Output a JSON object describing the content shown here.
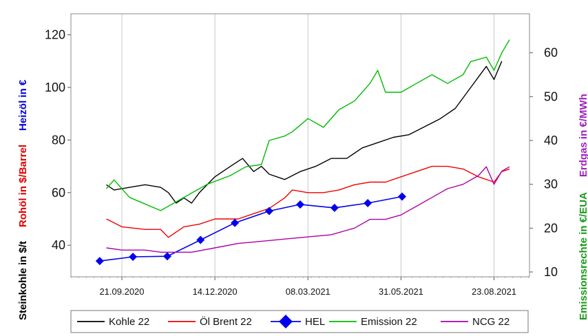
{
  "chart_data": {
    "type": "line",
    "left_axis_titles": [
      {
        "text": "Steinkohle in $/t",
        "color": "#000000"
      },
      {
        "text": "Rohöl in $/Barrel",
        "color": "#e00000"
      },
      {
        "text": "Heizöl in €",
        "color": "#0000dd"
      }
    ],
    "right_axis_titles": [
      {
        "text": "Emissionsrechte in €/EUA",
        "color": "#1a9a1a"
      },
      {
        "text": "Erdgas in €/MWh",
        "color": "#a020c0"
      }
    ],
    "left_axis": {
      "ylim": [
        28,
        128
      ],
      "ticks": [
        40,
        60,
        80,
        100,
        120
      ]
    },
    "right_axis": {
      "ylim": [
        8.9,
        68.9
      ],
      "ticks": [
        10,
        20,
        30,
        40,
        50,
        60
      ]
    },
    "x_axis": {
      "range": [
        "2020-08-06",
        "2021-09-24"
      ],
      "ticks": [
        {
          "date": "2020-09-21",
          "label": "21.09.2020"
        },
        {
          "date": "2020-12-14",
          "label": "14.12.2020"
        },
        {
          "date": "2021-03-08",
          "label": "08.03.2021"
        },
        {
          "date": "2021-05-31",
          "label": "31.05.2021"
        },
        {
          "date": "2021-08-23",
          "label": "23.08.2021"
        }
      ],
      "grid": true
    },
    "legend_position": "bottom",
    "series": [
      {
        "name": "Kohle 22",
        "color": "#000000",
        "axis": "left",
        "style": "line",
        "points": [
          [
            "2020-09-07",
            63
          ],
          [
            "2020-09-14",
            61
          ],
          [
            "2020-09-28",
            62
          ],
          [
            "2020-10-12",
            63
          ],
          [
            "2020-10-26",
            62
          ],
          [
            "2020-11-02",
            60
          ],
          [
            "2020-11-09",
            56
          ],
          [
            "2020-11-16",
            58
          ],
          [
            "2020-11-23",
            56
          ],
          [
            "2020-11-30",
            60
          ],
          [
            "2020-12-14",
            66
          ],
          [
            "2020-12-28",
            70
          ],
          [
            "2021-01-08",
            73
          ],
          [
            "2021-01-18",
            68
          ],
          [
            "2021-01-25",
            70
          ],
          [
            "2021-02-01",
            67
          ],
          [
            "2021-02-15",
            65
          ],
          [
            "2021-03-01",
            68
          ],
          [
            "2021-03-15",
            70
          ],
          [
            "2021-03-29",
            73
          ],
          [
            "2021-04-12",
            73
          ],
          [
            "2021-04-26",
            77
          ],
          [
            "2021-05-10",
            79
          ],
          [
            "2021-05-24",
            81
          ],
          [
            "2021-06-07",
            82
          ],
          [
            "2021-06-21",
            85
          ],
          [
            "2021-07-05",
            88
          ],
          [
            "2021-07-19",
            92
          ],
          [
            "2021-08-02",
            100
          ],
          [
            "2021-08-09",
            104
          ],
          [
            "2021-08-16",
            108
          ],
          [
            "2021-08-23",
            103
          ],
          [
            "2021-08-30",
            110
          ]
        ]
      },
      {
        "name": "Öl Brent 22",
        "color": "#ee0000",
        "axis": "left",
        "style": "line",
        "points": [
          [
            "2020-09-07",
            50
          ],
          [
            "2020-09-21",
            47
          ],
          [
            "2020-10-12",
            46
          ],
          [
            "2020-10-26",
            46
          ],
          [
            "2020-11-02",
            43
          ],
          [
            "2020-11-16",
            47
          ],
          [
            "2020-11-30",
            48
          ],
          [
            "2020-12-14",
            50
          ],
          [
            "2021-01-04",
            50
          ],
          [
            "2021-01-18",
            52
          ],
          [
            "2021-02-01",
            54
          ],
          [
            "2021-02-15",
            58
          ],
          [
            "2021-02-22",
            61
          ],
          [
            "2021-03-08",
            60
          ],
          [
            "2021-03-22",
            60
          ],
          [
            "2021-04-05",
            61
          ],
          [
            "2021-04-19",
            63
          ],
          [
            "2021-05-03",
            64
          ],
          [
            "2021-05-17",
            64
          ],
          [
            "2021-05-31",
            66
          ],
          [
            "2021-06-14",
            68
          ],
          [
            "2021-06-28",
            70
          ],
          [
            "2021-07-12",
            70
          ],
          [
            "2021-07-26",
            69
          ],
          [
            "2021-08-09",
            66
          ],
          [
            "2021-08-23",
            64
          ],
          [
            "2021-08-30",
            68
          ],
          [
            "2021-09-06",
            69
          ]
        ]
      },
      {
        "name": "HEL",
        "color": "#0000ee",
        "axis": "left",
        "style": "line-diamond",
        "points": [
          [
            "2020-09-01",
            34
          ],
          [
            "2020-10-01",
            35.6
          ],
          [
            "2020-11-01",
            35.8
          ],
          [
            "2020-12-01",
            42
          ],
          [
            "2021-01-01",
            48.5
          ],
          [
            "2021-02-01",
            53
          ],
          [
            "2021-03-01",
            55.5
          ],
          [
            "2021-04-01",
            54.2
          ],
          [
            "2021-05-01",
            56
          ],
          [
            "2021-06-01",
            58.5
          ]
        ]
      },
      {
        "name": "Emission 22",
        "color": "#00bb00",
        "axis": "right",
        "style": "line",
        "points": [
          [
            "2020-09-07",
            29
          ],
          [
            "2020-09-14",
            31
          ],
          [
            "2020-09-28",
            27
          ],
          [
            "2020-10-12",
            25.5
          ],
          [
            "2020-10-26",
            24
          ],
          [
            "2020-11-09",
            26
          ],
          [
            "2020-11-23",
            28
          ],
          [
            "2020-12-07",
            30
          ],
          [
            "2020-12-28",
            32
          ],
          [
            "2021-01-11",
            34
          ],
          [
            "2021-01-25",
            34.5
          ],
          [
            "2021-02-01",
            40
          ],
          [
            "2021-02-15",
            41
          ],
          [
            "2021-02-22",
            42
          ],
          [
            "2021-03-08",
            45
          ],
          [
            "2021-03-22",
            43
          ],
          [
            "2021-04-05",
            47
          ],
          [
            "2021-04-19",
            49
          ],
          [
            "2021-05-03",
            53
          ],
          [
            "2021-05-10",
            56
          ],
          [
            "2021-05-17",
            51
          ],
          [
            "2021-05-31",
            51
          ],
          [
            "2021-06-14",
            53
          ],
          [
            "2021-06-28",
            55
          ],
          [
            "2021-07-12",
            53
          ],
          [
            "2021-07-26",
            55
          ],
          [
            "2021-08-02",
            58
          ],
          [
            "2021-08-16",
            59
          ],
          [
            "2021-08-23",
            56
          ],
          [
            "2021-08-30",
            60
          ],
          [
            "2021-09-06",
            63
          ]
        ]
      },
      {
        "name": "NCG 22",
        "color": "#aa00aa",
        "axis": "right",
        "style": "line",
        "points": [
          [
            "2020-09-07",
            15.5
          ],
          [
            "2020-09-21",
            15
          ],
          [
            "2020-10-12",
            15
          ],
          [
            "2020-10-26",
            14.5
          ],
          [
            "2020-11-09",
            14.5
          ],
          [
            "2020-11-23",
            14.5
          ],
          [
            "2020-12-14",
            15.5
          ],
          [
            "2021-01-04",
            16.5
          ],
          [
            "2021-01-25",
            17
          ],
          [
            "2021-02-15",
            17.5
          ],
          [
            "2021-03-08",
            18
          ],
          [
            "2021-03-29",
            18.5
          ],
          [
            "2021-04-19",
            20
          ],
          [
            "2021-05-03",
            22
          ],
          [
            "2021-05-17",
            22
          ],
          [
            "2021-05-31",
            23
          ],
          [
            "2021-06-14",
            25
          ],
          [
            "2021-06-28",
            27
          ],
          [
            "2021-07-12",
            29
          ],
          [
            "2021-07-26",
            30
          ],
          [
            "2021-08-09",
            32
          ],
          [
            "2021-08-16",
            34
          ],
          [
            "2021-08-23",
            30
          ],
          [
            "2021-08-30",
            33
          ],
          [
            "2021-09-06",
            34
          ]
        ]
      }
    ]
  }
}
